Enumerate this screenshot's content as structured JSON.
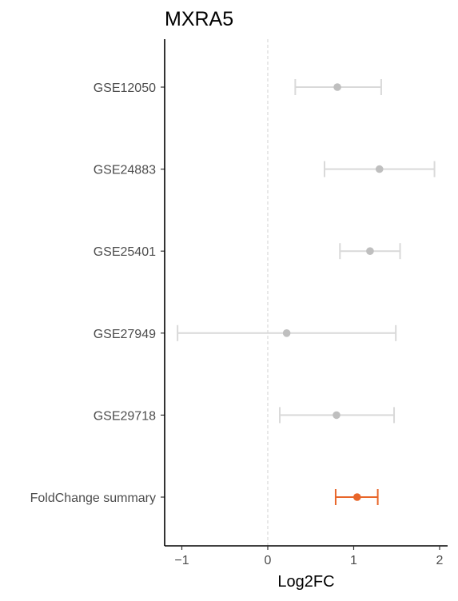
{
  "chart_data": {
    "type": "forest",
    "title": "MXRA5",
    "xlabel": "Log2FC",
    "ylabel": "",
    "xlim": [
      -1.2,
      2.1
    ],
    "x_ticks": [
      -1,
      0,
      1,
      2
    ],
    "x_tick_labels": [
      "−1",
      "0",
      "1",
      "2"
    ],
    "reference_line": 0,
    "grid": false,
    "categories": [
      "GSE12050",
      "GSE24883",
      "GSE25401",
      "GSE27949",
      "GSE29718",
      "FoldChange summary"
    ],
    "points": [
      {
        "label": "GSE12050",
        "value": 0.81,
        "lower": 0.32,
        "upper": 1.32,
        "color": "#bfbfbf"
      },
      {
        "label": "GSE24883",
        "value": 1.3,
        "lower": 0.66,
        "upper": 1.94,
        "color": "#bfbfbf"
      },
      {
        "label": "GSE25401",
        "value": 1.19,
        "lower": 0.84,
        "upper": 1.54,
        "color": "#bfbfbf"
      },
      {
        "label": "GSE27949",
        "value": 0.22,
        "lower": -1.05,
        "upper": 1.49,
        "color": "#bfbfbf"
      },
      {
        "label": "GSE29718",
        "value": 0.8,
        "lower": 0.14,
        "upper": 1.47,
        "color": "#bfbfbf"
      },
      {
        "label": "FoldChange summary",
        "value": 1.04,
        "lower": 0.79,
        "upper": 1.28,
        "color": "#e8662a"
      }
    ],
    "error_bar_colors": {
      "study": "#d9d9d9",
      "summary": "#e8662a"
    }
  }
}
